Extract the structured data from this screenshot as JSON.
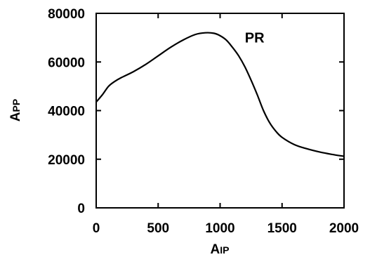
{
  "chart_data": {
    "type": "line",
    "title": "",
    "xlabel": "AIP",
    "ylabel": "APP",
    "xlim": [
      0,
      2000
    ],
    "ylim": [
      0,
      80000
    ],
    "xticks": [
      0,
      500,
      1000,
      1500,
      2000
    ],
    "yticks": [
      0,
      20000,
      40000,
      60000,
      80000
    ],
    "xtick_labels": [
      "0",
      "500",
      "1000",
      "1500",
      "2000"
    ],
    "ytick_labels": [
      "0",
      "20000",
      "40000",
      "60000",
      "80000"
    ],
    "grid": false,
    "annotations": [
      {
        "text": "PR",
        "x": 1200,
        "y": 68000
      }
    ],
    "series": [
      {
        "color": "#000000",
        "points": [
          [
            0,
            43500
          ],
          [
            50,
            46500
          ],
          [
            100,
            50000
          ],
          [
            150,
            52000
          ],
          [
            200,
            53500
          ],
          [
            300,
            56000
          ],
          [
            400,
            59000
          ],
          [
            500,
            62500
          ],
          [
            600,
            66000
          ],
          [
            700,
            69000
          ],
          [
            800,
            71300
          ],
          [
            880,
            72000
          ],
          [
            950,
            71800
          ],
          [
            1000,
            70800
          ],
          [
            1050,
            69000
          ],
          [
            1100,
            66000
          ],
          [
            1150,
            62500
          ],
          [
            1200,
            58000
          ],
          [
            1250,
            52500
          ],
          [
            1300,
            46500
          ],
          [
            1350,
            40000
          ],
          [
            1400,
            35000
          ],
          [
            1450,
            31500
          ],
          [
            1500,
            29000
          ],
          [
            1600,
            26000
          ],
          [
            1700,
            24300
          ],
          [
            1800,
            23000
          ],
          [
            1900,
            22000
          ],
          [
            2000,
            21200
          ]
        ]
      }
    ]
  }
}
